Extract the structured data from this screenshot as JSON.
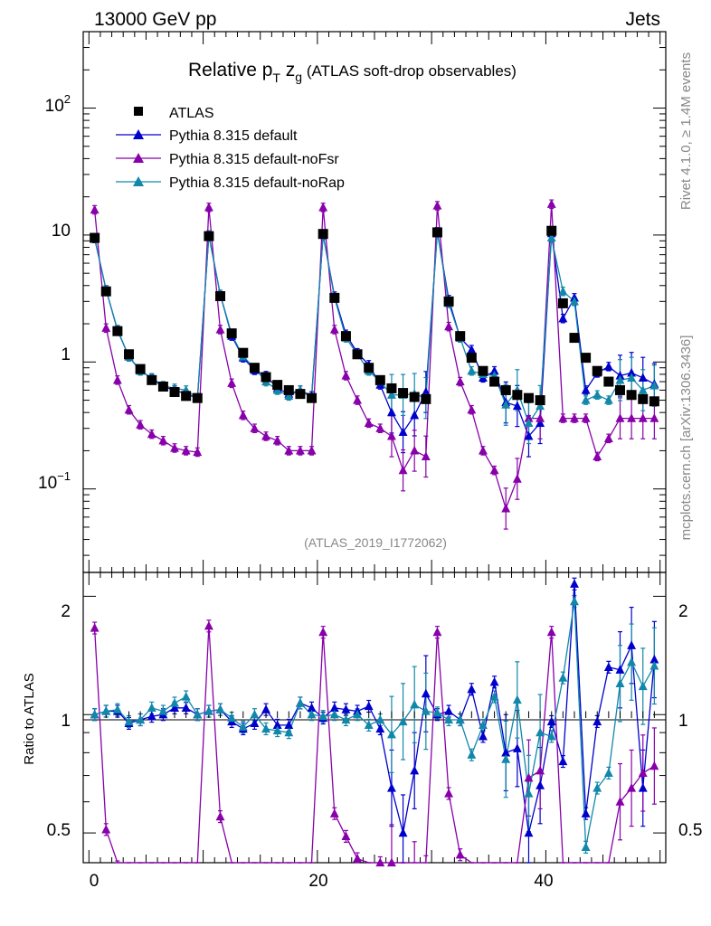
{
  "header": {
    "left": "13000 GeV pp",
    "right": "Jets"
  },
  "side_labels": {
    "top": "Rivet 4.1.0, ≥ 1.4M events",
    "bottom": "mcplots.cern.ch [arXiv:1306.3436]"
  },
  "chart_data": {
    "type": "line",
    "title_main": "Relative p",
    "title_sub": "T",
    "title_z": " z",
    "title_zsub": "g",
    "title_rest": " (ATLAS soft-drop observables)",
    "analysis_label": "(ATLAS_2019_I1772062)",
    "main_ylabel": "",
    "ratio_ylabel": "Ratio to ATLAS",
    "main_yticks": [
      {
        "value": 0.1,
        "label": "10",
        "exp": "−1"
      },
      {
        "value": 1,
        "label": "1",
        "exp": ""
      },
      {
        "value": 10,
        "label": "10",
        "exp": ""
      },
      {
        "value": 100,
        "label": "10",
        "exp": "2"
      }
    ],
    "ratio_yticks": [
      "0.5",
      "1",
      "2"
    ],
    "xticks": [
      "0",
      "20",
      "40"
    ],
    "ylim_main": [
      0.022,
      400
    ],
    "ylim_ratio": [
      0.42,
      2.3
    ],
    "xlim": [
      -0.5,
      50.5
    ],
    "x": [
      0.5,
      1.5,
      2.5,
      3.5,
      4.5,
      5.5,
      6.5,
      7.5,
      8.5,
      9.5,
      10.5,
      11.5,
      12.5,
      13.5,
      14.5,
      15.5,
      16.5,
      17.5,
      18.5,
      19.5,
      20.5,
      21.5,
      22.5,
      23.5,
      24.5,
      25.5,
      26.5,
      27.5,
      28.5,
      29.5,
      30.5,
      31.5,
      32.5,
      33.5,
      34.5,
      35.5,
      36.5,
      37.5,
      38.5,
      39.5,
      40.5,
      41.5,
      42.5,
      43.5,
      44.5,
      45.5,
      46.5,
      47.5,
      48.5,
      49.5
    ],
    "series": [
      {
        "name": "ATLAS",
        "color": "#000000",
        "marker": "square",
        "values": [
          9.5,
          3.6,
          1.75,
          1.15,
          0.88,
          0.72,
          0.64,
          0.58,
          0.54,
          0.52,
          9.8,
          3.3,
          1.68,
          1.18,
          0.9,
          0.76,
          0.66,
          0.6,
          0.56,
          0.52,
          10.2,
          3.2,
          1.6,
          1.15,
          0.9,
          0.72,
          0.62,
          0.57,
          0.53,
          0.51,
          10.5,
          3.0,
          1.6,
          1.08,
          0.85,
          0.7,
          0.6,
          0.55,
          0.52,
          0.5,
          10.8,
          2.9,
          1.55,
          1.08,
          0.85,
          0.7,
          0.6,
          0.55,
          0.51,
          0.49
        ]
      },
      {
        "name": "Pythia 8.315 default",
        "color": "#0000cc",
        "marker": "triangle",
        "values": [
          9.4,
          3.7,
          1.78,
          1.1,
          0.86,
          0.74,
          0.64,
          0.6,
          0.56,
          0.52,
          9.9,
          3.4,
          1.6,
          1.08,
          0.86,
          0.78,
          0.62,
          0.56,
          0.6,
          0.54,
          10.0,
          3.3,
          1.65,
          1.18,
          0.95,
          0.66,
          0.4,
          0.28,
          0.38,
          0.58,
          10.6,
          3.1,
          1.55,
          1.25,
          0.75,
          0.85,
          0.48,
          0.45,
          0.26,
          0.33,
          10.3,
          2.2,
          3.2,
          0.6,
          0.82,
          0.92,
          0.78,
          0.82,
          0.75,
          0.67
        ]
      },
      {
        "name": "Pythia 8.315 default-noFsr",
        "color": "#8800aa",
        "marker": "triangle",
        "values": [
          15.8,
          1.85,
          0.72,
          0.42,
          0.32,
          0.27,
          0.24,
          0.21,
          0.2,
          0.195,
          16.5,
          1.8,
          0.68,
          0.38,
          0.3,
          0.26,
          0.24,
          0.2,
          0.2,
          0.2,
          16.5,
          1.8,
          0.78,
          0.5,
          0.33,
          0.3,
          0.26,
          0.14,
          0.2,
          0.18,
          17.0,
          1.9,
          0.7,
          0.42,
          0.2,
          0.14,
          0.07,
          0.12,
          0.36,
          0.36,
          17.5,
          0.36,
          0.36,
          0.36,
          0.18,
          0.25,
          0.36,
          0.36,
          0.36,
          0.36
        ]
      },
      {
        "name": "Pythia 8.315 default-noRap",
        "color": "#1188aa",
        "marker": "triangle",
        "values": [
          9.5,
          3.7,
          1.8,
          1.1,
          0.85,
          0.75,
          0.65,
          0.62,
          0.6,
          0.52,
          10.0,
          3.4,
          1.65,
          1.1,
          0.9,
          0.7,
          0.6,
          0.54,
          0.6,
          0.52,
          10.1,
          3.2,
          1.55,
          1.15,
          0.85,
          0.7,
          0.55,
          0.55,
          0.56,
          0.52,
          10.6,
          2.9,
          1.55,
          0.85,
          0.8,
          0.78,
          0.46,
          0.6,
          0.33,
          0.45,
          9.5,
          3.6,
          3.0,
          0.5,
          0.55,
          0.5,
          0.72,
          0.75,
          0.6,
          0.65
        ]
      }
    ],
    "ratios": [
      [
        1.0,
        1.02,
        1.02,
        0.95,
        0.97,
        0.99,
        1.0,
        1.04,
        1.04,
        1.0,
        1.02,
        1.03,
        0.96,
        0.92,
        0.95,
        1.03,
        0.94,
        0.94,
        1.07,
        1.04,
        0.98,
        1.04,
        1.03,
        1.02,
        1.05,
        0.92,
        0.65,
        0.5,
        0.72,
        1.13,
        1.0,
        1.02,
        0.97,
        1.16,
        0.88,
        1.21,
        0.8,
        0.82,
        0.5,
        0.66,
        0.96,
        0.76,
        2.15,
        0.56,
        0.96,
        1.32,
        1.3,
        1.5,
        0.65,
        1.38
      ],
      [
        1.66,
        0.51,
        0.41,
        0.36,
        0.36,
        0.36,
        0.36,
        0.36,
        0.36,
        0.36,
        1.68,
        0.55,
        0.4,
        0.32,
        0.33,
        0.34,
        0.36,
        0.33,
        0.36,
        0.38,
        1.62,
        0.56,
        0.49,
        0.43,
        0.37,
        0.42,
        0.42,
        0.25,
        0.38,
        0.35,
        1.62,
        0.63,
        0.44,
        0.39,
        0.24,
        0.2,
        0.12,
        0.22,
        0.69,
        0.72,
        1.62,
        0.12,
        0.23,
        0.33,
        0.21,
        0.36,
        0.6,
        0.65,
        0.71,
        0.74
      ],
      [
        1.0,
        1.02,
        1.03,
        0.96,
        0.97,
        1.04,
        1.02,
        1.07,
        1.11,
        1.0,
        1.02,
        1.03,
        0.98,
        0.93,
        1.0,
        0.92,
        0.91,
        0.9,
        1.07,
        1.0,
        0.99,
        1.0,
        0.97,
        1.0,
        0.94,
        0.97,
        0.89,
        0.96,
        1.06,
        1.02,
        1.01,
        0.97,
        0.97,
        0.79,
        0.94,
        1.11,
        0.77,
        1.09,
        0.63,
        0.9,
        0.88,
        1.24,
        1.94,
        0.46,
        0.65,
        0.71,
        1.2,
        1.36,
        1.18,
        1.33
      ]
    ]
  }
}
